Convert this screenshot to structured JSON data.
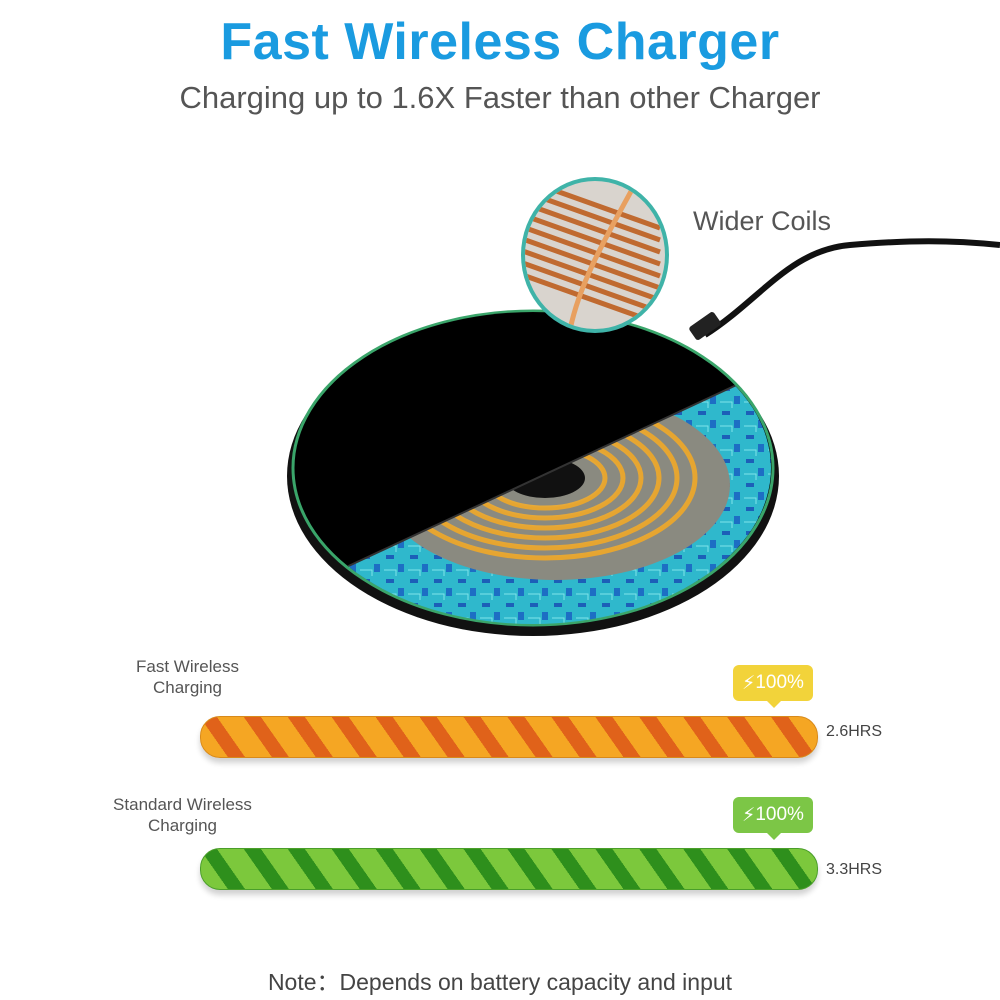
{
  "header": {
    "title": "Fast Wireless Charger",
    "subtitle": "Charging up to 1.6X Faster than other Charger"
  },
  "product": {
    "callout_label": "Wider Coils"
  },
  "comparison": [
    {
      "label_line1": "Fast Wireless",
      "label_line2": "Charging",
      "badge": "100%",
      "time": "2.6HRS",
      "level": 1.0,
      "bar_color": "#f5a623",
      "stripe_color": "#e0621a",
      "badge_color": "#f2d33a",
      "icon": "lightning-icon"
    },
    {
      "label_line1": "Standard Wireless",
      "label_line2": "Charging",
      "badge": "100%",
      "time": "3.3HRS",
      "level": 1.0,
      "bar_color": "#7cc83c",
      "stripe_color": "#2e8f1c",
      "badge_color": "#7cc646",
      "icon": "lightning-icon"
    }
  ],
  "footer": {
    "note": "Note：Depends on battery capacity and input"
  },
  "colors": {
    "title": "#1a9be0",
    "rim": "#3aa56a",
    "callout_border": "#3fb3a8"
  }
}
